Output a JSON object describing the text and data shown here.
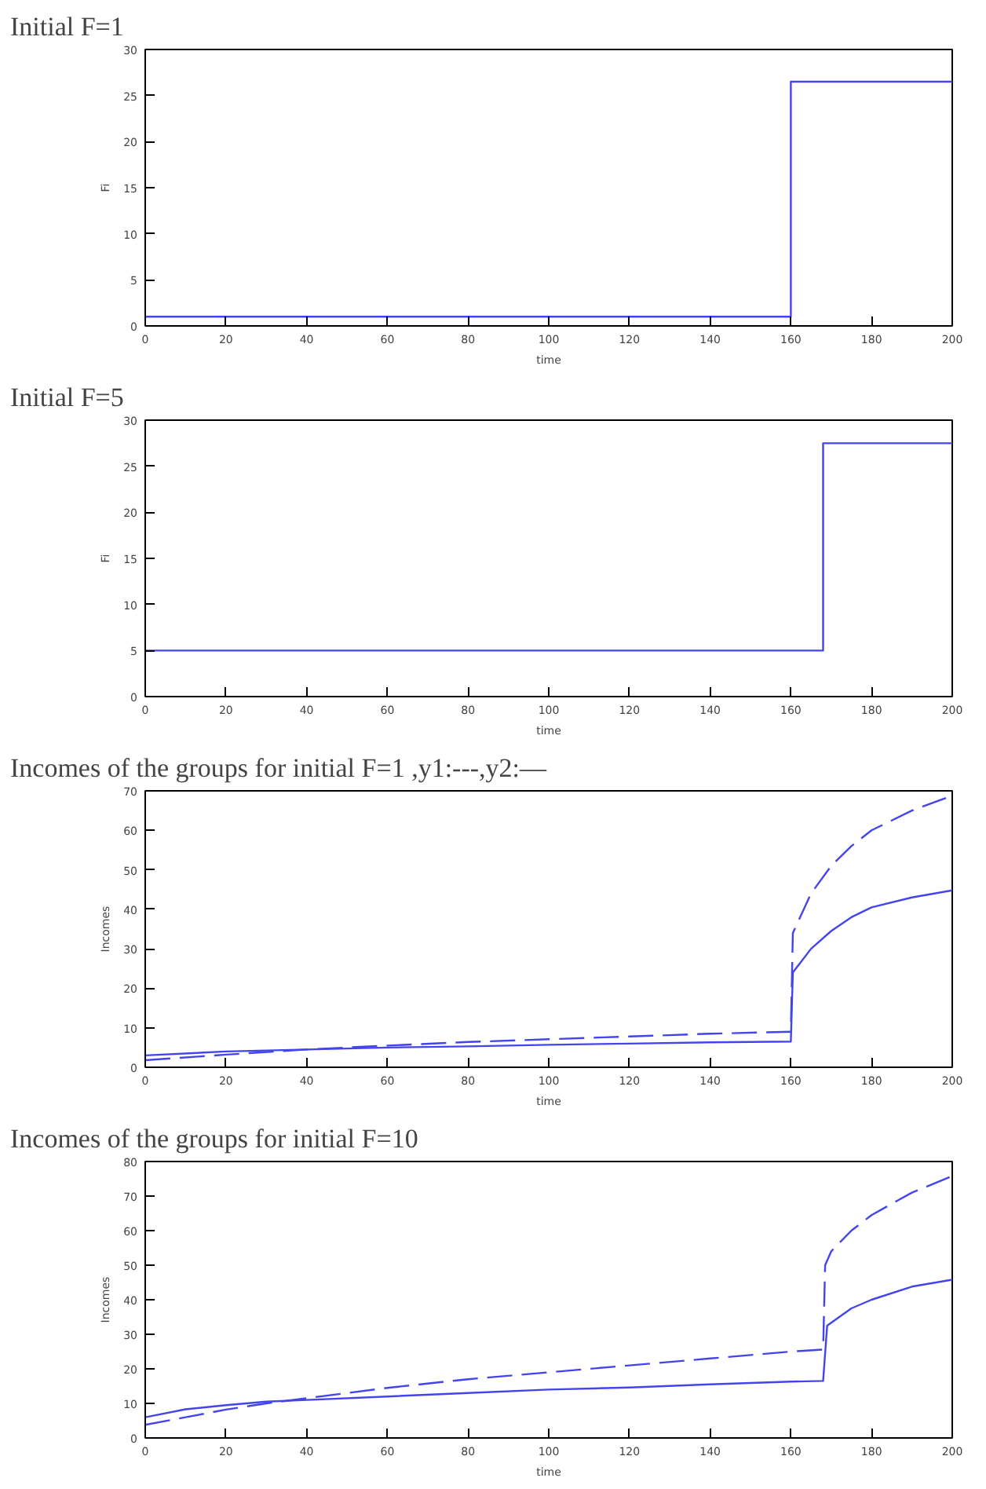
{
  "chart_data": [
    {
      "type": "line",
      "title": "Initial F=1",
      "xlabel": "time",
      "ylabel": "Fi",
      "xlim": [
        0,
        200
      ],
      "ylim": [
        0,
        30
      ],
      "xticks": [
        0,
        20,
        40,
        60,
        80,
        100,
        120,
        140,
        160,
        180,
        200
      ],
      "yticks": [
        0,
        5,
        10,
        15,
        20,
        25,
        30
      ],
      "grid": false,
      "series": [
        {
          "color": "#4444ee",
          "line_style": "solid",
          "x": [
            0,
            160,
            160,
            200
          ],
          "values": [
            1,
            1,
            26.5,
            26.5
          ]
        }
      ]
    },
    {
      "type": "line",
      "title": "Initial F=5",
      "xlabel": "time",
      "ylabel": "Fi",
      "xlim": [
        0,
        200
      ],
      "ylim": [
        0,
        30
      ],
      "xticks": [
        0,
        20,
        40,
        60,
        80,
        100,
        120,
        140,
        160,
        180,
        200
      ],
      "yticks": [
        0,
        5,
        10,
        15,
        20,
        25,
        30
      ],
      "grid": false,
      "series": [
        {
          "color": "#4444ee",
          "line_style": "solid",
          "x": [
            0,
            168,
            168,
            200
          ],
          "values": [
            5,
            5,
            27.5,
            27.5
          ]
        }
      ]
    },
    {
      "type": "line",
      "title": "Incomes of the groups for initial F=1 ,y1:---,y2:—",
      "xlabel": "time",
      "ylabel": "Incomes",
      "xlim": [
        0,
        200
      ],
      "ylim": [
        0,
        70
      ],
      "xticks": [
        0,
        20,
        40,
        60,
        80,
        100,
        120,
        140,
        160,
        180,
        200
      ],
      "yticks": [
        0,
        10,
        20,
        30,
        40,
        50,
        60,
        70
      ],
      "grid": false,
      "series": [
        {
          "color": "#4444ee",
          "line_style": "dashed",
          "x": [
            0,
            20,
            40,
            60,
            80,
            100,
            120,
            140,
            160,
            160.5,
            165,
            170,
            175,
            180,
            190,
            200
          ],
          "values": [
            1.8,
            3.2,
            4.5,
            5.5,
            6.4,
            7.1,
            7.8,
            8.5,
            9.0,
            34,
            44,
            51,
            56,
            60,
            65,
            68.8
          ]
        },
        {
          "color": "#4444ee",
          "line_style": "solid",
          "x": [
            0,
            20,
            40,
            60,
            80,
            100,
            120,
            140,
            160,
            160.5,
            165,
            170,
            175,
            180,
            190,
            200
          ],
          "values": [
            3.0,
            4.0,
            4.5,
            5.0,
            5.3,
            5.7,
            6.0,
            6.3,
            6.5,
            24,
            30,
            34.5,
            38,
            40.5,
            43,
            44.8
          ]
        }
      ]
    },
    {
      "type": "line",
      "title": "Incomes of the groups for initial F=10",
      "xlabel": "time",
      "ylabel": "Incomes",
      "xlim": [
        0,
        200
      ],
      "ylim": [
        0,
        80
      ],
      "xticks": [
        0,
        20,
        40,
        60,
        80,
        100,
        120,
        140,
        160,
        180,
        200
      ],
      "yticks": [
        0,
        10,
        20,
        30,
        40,
        50,
        60,
        70,
        80
      ],
      "grid": false,
      "series": [
        {
          "color": "#4444ee",
          "line_style": "dashed",
          "x": [
            0,
            10,
            20,
            30,
            40,
            60,
            80,
            100,
            120,
            140,
            160,
            168,
            168.5,
            170,
            175,
            180,
            190,
            200
          ],
          "values": [
            3.8,
            6,
            8.2,
            10,
            11.5,
            14.5,
            17,
            19,
            21,
            23,
            25,
            25.6,
            50,
            54,
            60,
            64.5,
            71,
            75.8
          ]
        },
        {
          "color": "#4444ee",
          "line_style": "solid",
          "x": [
            0,
            10,
            20,
            30,
            40,
            60,
            80,
            100,
            120,
            140,
            160,
            168,
            169,
            175,
            180,
            190,
            200
          ],
          "values": [
            6,
            8.3,
            9.5,
            10.5,
            11,
            12,
            13,
            14,
            14.6,
            15.5,
            16.3,
            16.5,
            32.5,
            37.5,
            40,
            43.8,
            45.8
          ]
        }
      ]
    }
  ]
}
